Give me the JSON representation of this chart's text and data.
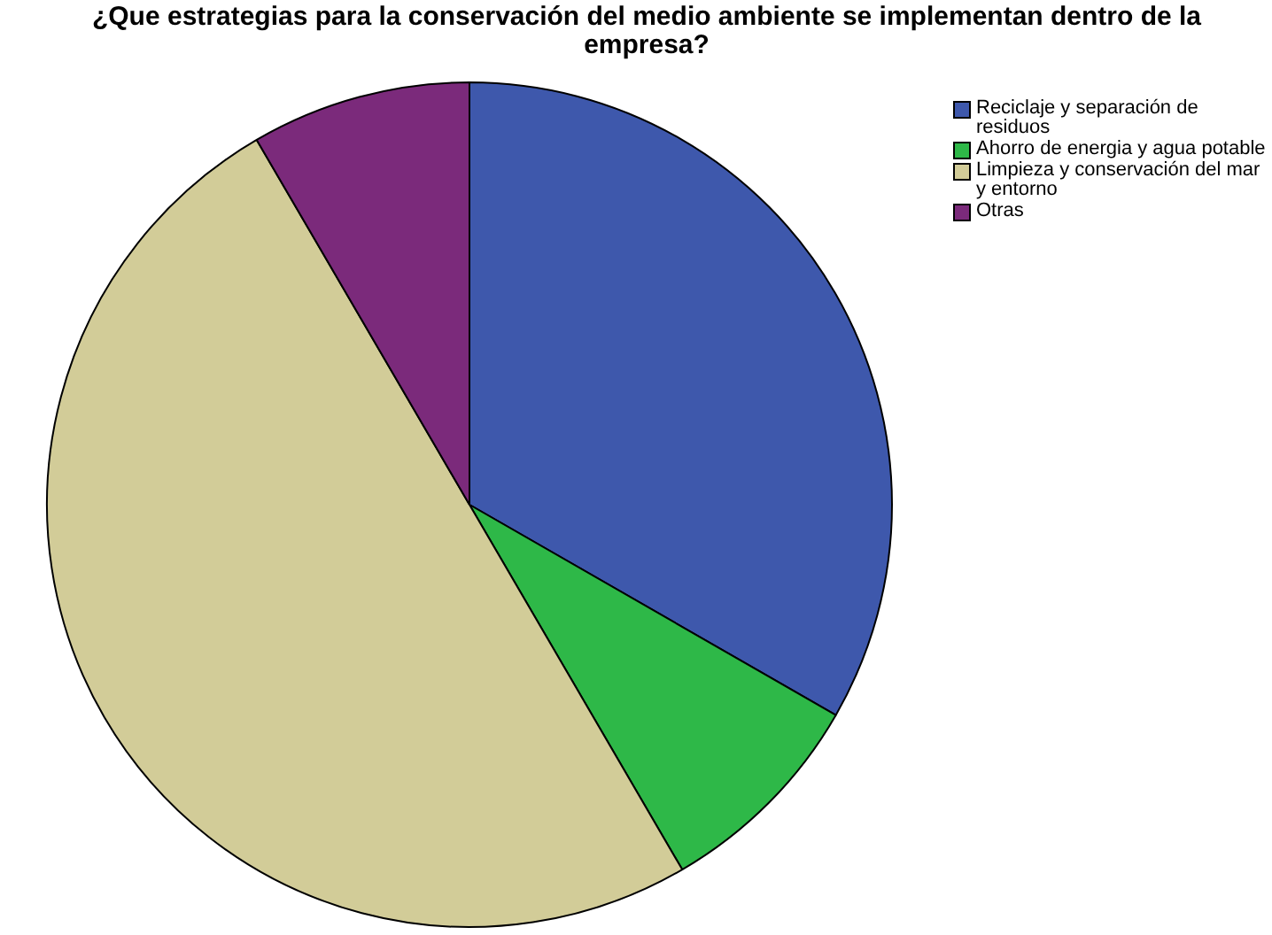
{
  "chart_data": {
    "type": "pie",
    "title": "¿Que estrategias para la conservación del medio ambiente se implementan dentro de la empresa?",
    "categories": [
      "Reciclaje y separación de residuos",
      "Ahorro de energia y agua potable",
      "Limpieza y conservación del mar y entorno",
      "Otras"
    ],
    "values": [
      33.3,
      8.3,
      50,
      8.4
    ],
    "colors": [
      "#3e58ac",
      "#2eb848",
      "#d2cc98",
      "#7b2a7b"
    ],
    "legend": "top right"
  }
}
